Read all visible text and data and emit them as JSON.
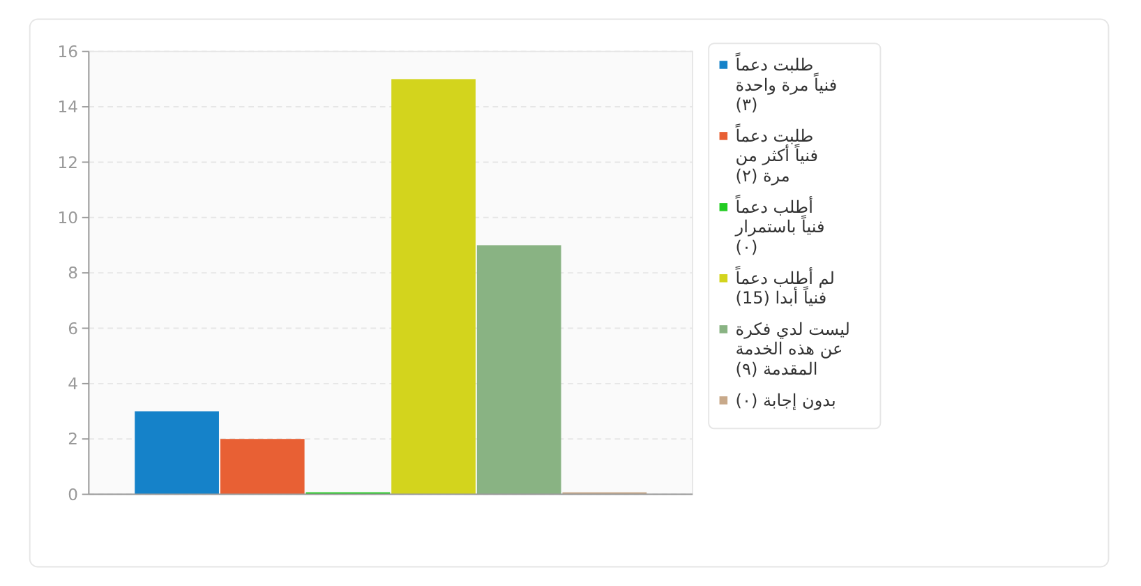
{
  "chart_data": {
    "type": "bar",
    "categories": [
      null
    ],
    "series": [
      {
        "name": "طلبت دعماً فنياً مرة واحدة (٣)",
        "color": "#1582c9",
        "values": [
          3
        ]
      },
      {
        "name": "طلبت دعماً فنياً أكثر من مرة (٢)",
        "color": "#e86034",
        "values": [
          2
        ]
      },
      {
        "name": "أطلب دعماً فنياً باستمرار (٠)",
        "color": "#22cc22",
        "values": [
          0
        ]
      },
      {
        "name": "لم أطلب دعماً فنياً أبدا (15)",
        "color": "#d3d41d",
        "values": [
          15
        ]
      },
      {
        "name": "ليست لدي فكرة عن هذه الخدمة المقدمة (٩)",
        "color": "#89b383",
        "values": [
          9
        ]
      },
      {
        "name": "بدون إجابة (٠)",
        "color": "#c8a98a",
        "values": [
          0
        ]
      }
    ],
    "ylim": [
      0,
      16
    ],
    "yticks": [
      0,
      2,
      4,
      6,
      8,
      10,
      12,
      14,
      16
    ],
    "grid": "y",
    "legend": "right"
  }
}
